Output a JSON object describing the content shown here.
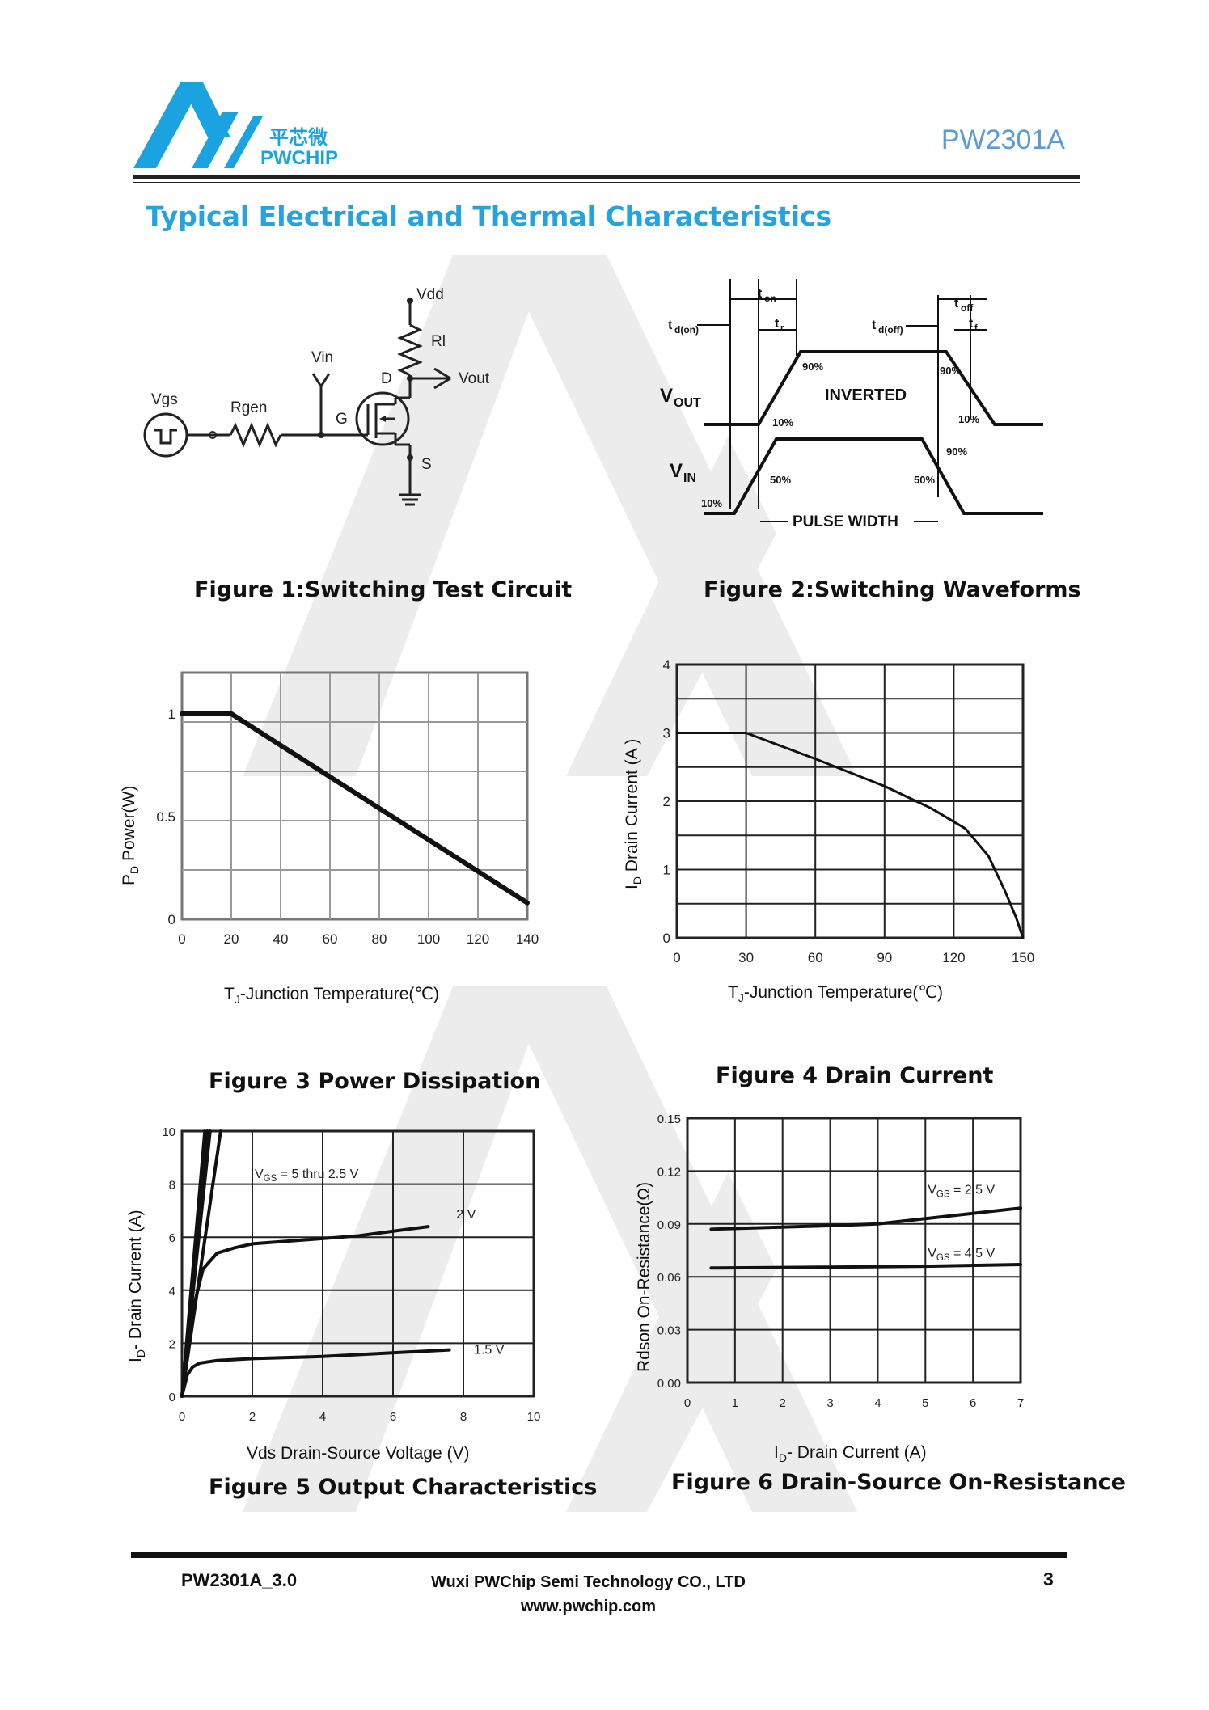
{
  "header": {
    "logo_cn": "平芯微",
    "logo_en": "PWCHIP",
    "part_number": "PW2301A",
    "section_title": "Typical Electrical and Thermal Characteristics"
  },
  "fig1": {
    "caption": "Figure 1:Switching Test Circuit",
    "labels": {
      "vdd": "Vdd",
      "rl": "Rl",
      "vin": "Vin",
      "vout": "Vout",
      "d": "D",
      "vgs": "Vgs",
      "rgen": "Rgen",
      "g": "G",
      "s": "S"
    }
  },
  "fig2": {
    "caption": "Figure 2:Switching Waveforms",
    "labels": {
      "ton": "t",
      "ton_sub": "on",
      "tr": "t",
      "tr_sub": "r",
      "tdon": "t",
      "tdon_sub": "d(on)",
      "tdoff": "t",
      "tdoff_sub": "d(off)",
      "toff": "t",
      "toff_sub": "off",
      "tf": "t",
      "tf_sub": "f",
      "vout": "V",
      "vout_sub": "OUT",
      "vin": "V",
      "vin_sub": "IN",
      "inverted": "INVERTED",
      "pulse_width": "PULSE WIDTH",
      "p90a": "90%",
      "p90b": "90%",
      "p90c": "90%",
      "p10a": "10%",
      "p10b": "10%",
      "p10c": "10%",
      "p50a": "50%",
      "p50b": "50%"
    }
  },
  "chart_data": [
    {
      "id": "fig3",
      "type": "line",
      "title": "Figure 3 Power Dissipation",
      "ylabel_pre": "P",
      "ylabel_sub": "D",
      "ylabel_post": "  Power(W)",
      "xlabel_pre": "T",
      "xlabel_sub": "J",
      "xlabel_post": "-Junction Temperature(℃)",
      "xlim": [
        0,
        140
      ],
      "ylim": [
        0,
        1.2
      ],
      "x_ticks": [
        "0",
        "20",
        "40",
        "60",
        "80",
        "100",
        "120",
        "140"
      ],
      "y_ticks": [
        "0",
        "0.5",
        "1"
      ],
      "series": [
        {
          "name": "PD",
          "x": [
            0,
            20,
            140
          ],
          "y": [
            1.0,
            1.0,
            0.08
          ]
        }
      ]
    },
    {
      "id": "fig4",
      "type": "line",
      "title": "Figure 4 Drain Current",
      "ylabel_pre": "I",
      "ylabel_sub": "D",
      "ylabel_post": "  Drain Current (A )",
      "xlabel_pre": "T",
      "xlabel_sub": "J",
      "xlabel_post": "-Junction Temperature(℃)",
      "xlim": [
        0,
        150
      ],
      "ylim": [
        0,
        4
      ],
      "x_ticks": [
        "0",
        "30",
        "60",
        "90",
        "120",
        "150"
      ],
      "y_ticks": [
        "0",
        "1",
        "2",
        "3",
        "4"
      ],
      "series": [
        {
          "name": "ID",
          "x": [
            0,
            30,
            60,
            90,
            110,
            125,
            135,
            142,
            147,
            150
          ],
          "y": [
            3.0,
            3.0,
            2.62,
            2.22,
            1.9,
            1.6,
            1.2,
            0.7,
            0.3,
            0.0
          ]
        }
      ]
    },
    {
      "id": "fig5",
      "type": "line",
      "title": "Figure 5 Output Characteristics",
      "ylabel_pre": "I",
      "ylabel_sub": "D",
      "ylabel_post": "- Drain Current (A)",
      "xlabel": "Vds Drain-Source Voltage (V)",
      "xlim": [
        0,
        10
      ],
      "ylim": [
        0,
        10
      ],
      "x_ticks": [
        "0",
        "2",
        "4",
        "6",
        "8",
        "10"
      ],
      "y_ticks": [
        "0",
        "2",
        "4",
        "6",
        "8",
        "10"
      ],
      "annotation_main_pre": "V",
      "annotation_main_sub": "GS",
      "annotation_main_post": " = 5 thru 2.5 V",
      "series": [
        {
          "name": "5 thru 2.5 V (a)",
          "x": [
            0,
            0.65
          ],
          "y": [
            0,
            10
          ]
        },
        {
          "name": "5 thru 2.5 V (b)",
          "x": [
            0,
            0.72
          ],
          "y": [
            0,
            10
          ]
        },
        {
          "name": "5 thru 2.5 V (c)",
          "x": [
            0,
            0.8
          ],
          "y": [
            0,
            10
          ]
        },
        {
          "name": "5 thru 2.5 V (d)",
          "x": [
            0,
            1.1
          ],
          "y": [
            0,
            10
          ]
        },
        {
          "name": "2 V",
          "x": [
            0,
            0.3,
            0.6,
            1.0,
            1.5,
            2.0,
            3.0,
            5.0,
            7.0
          ],
          "y": [
            0,
            3.2,
            4.8,
            5.4,
            5.6,
            5.75,
            5.85,
            6.05,
            6.4
          ]
        },
        {
          "name": "1.5 V",
          "x": [
            0,
            0.15,
            0.3,
            0.5,
            1.0,
            2.0,
            4.0,
            7.6
          ],
          "y": [
            0,
            0.8,
            1.1,
            1.25,
            1.35,
            1.42,
            1.5,
            1.75
          ]
        }
      ],
      "curve_labels": [
        "2 V",
        "1.5 V"
      ]
    },
    {
      "id": "fig6",
      "type": "line",
      "title": "Figure 6 Drain-Source On-Resistance",
      "ylabel": "Rdson On-Resistance(Ω)",
      "xlabel_pre": "I",
      "xlabel_sub": "D",
      "xlabel_post": "- Drain Current (A)",
      "xlim": [
        0,
        7
      ],
      "ylim": [
        0,
        0.15
      ],
      "x_ticks": [
        "0",
        "1",
        "2",
        "3",
        "4",
        "5",
        "6",
        "7"
      ],
      "y_ticks": [
        "0.00",
        "0.03",
        "0.06",
        "0.09",
        "0.12",
        "0.15"
      ],
      "series": [
        {
          "name": "VGS = 2.5 V",
          "x": [
            0.5,
            3,
            4,
            5,
            7
          ],
          "y": [
            0.087,
            0.089,
            0.09,
            0.093,
            0.099
          ]
        },
        {
          "name": "VGS = 4.5 V",
          "x": [
            0.5,
            3,
            5,
            7
          ],
          "y": [
            0.065,
            0.0655,
            0.066,
            0.067
          ]
        }
      ],
      "series_label_pre": [
        "V",
        "V"
      ],
      "series_label_sub": [
        "GS",
        "GS"
      ],
      "series_label_post": [
        " = 2.5 V",
        " = 4.5 V"
      ]
    }
  ],
  "footer": {
    "doc_version": "PW2301A_3.0",
    "company": "Wuxi PWChip Semi Technology CO., LTD",
    "website": "www.pwchip.com",
    "page_number": "3"
  }
}
